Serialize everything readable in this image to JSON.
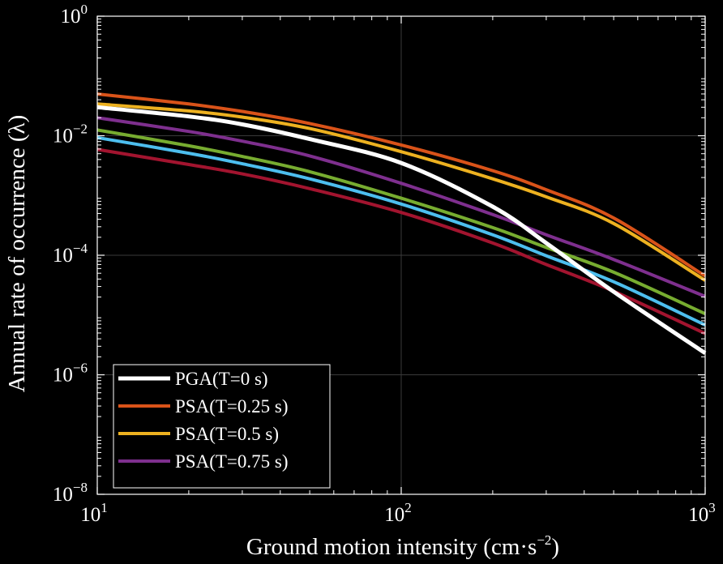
{
  "chart_data": {
    "type": "line",
    "xlabel": "Ground motion intensity (cm·s",
    "xlabel_exp": "−2",
    "xlabel_close": ")",
    "ylabel": "Annual rate of occurrence (λ)",
    "xscale": "log",
    "yscale": "log",
    "xlim": [
      10,
      1000
    ],
    "ylim": [
      1e-08,
      1
    ],
    "grid": true,
    "legend_position": "bottom-left",
    "x_ticks": [
      {
        "value": 10,
        "base": "10",
        "exp": "1"
      },
      {
        "value": 100,
        "base": "10",
        "exp": "2"
      },
      {
        "value": 1000,
        "base": "10",
        "exp": "3"
      }
    ],
    "y_ticks": [
      {
        "value": 1,
        "base": "10",
        "exp": "0"
      },
      {
        "value": 0.01,
        "base": "10",
        "exp": "−2"
      },
      {
        "value": 0.0001,
        "base": "10",
        "exp": "−4"
      },
      {
        "value": 1e-06,
        "base": "10",
        "exp": "−6"
      },
      {
        "value": 1e-08,
        "base": "10",
        "exp": "−8"
      }
    ],
    "x": [
      10,
      20,
      30,
      50,
      100,
      200,
      300,
      500,
      1000
    ],
    "series": [
      {
        "name": "PGA(T=0 s)",
        "color": "#ffffff",
        "in_legend": true,
        "values": [
          0.03,
          0.021,
          0.0155,
          0.0088,
          0.0035,
          0.00065,
          0.00016,
          2.45e-05,
          2.3e-06
        ]
      },
      {
        "name": "PSA(T=0.25 s)",
        "color": "#d95319",
        "in_legend": true,
        "values": [
          0.05,
          0.034,
          0.0255,
          0.016,
          0.007,
          0.0026,
          0.00125,
          0.00042,
          4.5e-05
        ]
      },
      {
        "name": "PSA(T=0.5 s)",
        "color": "#edb120",
        "in_legend": true,
        "values": [
          0.034,
          0.026,
          0.0205,
          0.0132,
          0.0054,
          0.0019,
          0.00095,
          0.00034,
          3.8e-05
        ]
      },
      {
        "name": "PSA(T=0.75 s)",
        "color": "#7e2f8e",
        "in_legend": true,
        "values": [
          0.02,
          0.0118,
          0.0081,
          0.0046,
          0.0016,
          0.00048,
          0.00022,
          8.5e-05,
          2.05e-05
        ]
      },
      {
        "color": "#77ac30",
        "in_legend": false,
        "values": [
          0.0125,
          0.0068,
          0.0045,
          0.0025,
          0.0009,
          0.00029,
          0.000135,
          5.2e-05,
          1.05e-05
        ]
      },
      {
        "color": "#4dbeee",
        "in_legend": false,
        "values": [
          0.0093,
          0.0051,
          0.0034,
          0.0019,
          0.00072,
          0.00022,
          9.8e-05,
          3.6e-05,
          6.8e-06
        ]
      },
      {
        "color": "#a2142f",
        "in_legend": false,
        "values": [
          0.0059,
          0.0033,
          0.0023,
          0.0013,
          0.00052,
          0.00016,
          7e-05,
          2.5e-05,
          4.9e-06
        ]
      }
    ]
  }
}
